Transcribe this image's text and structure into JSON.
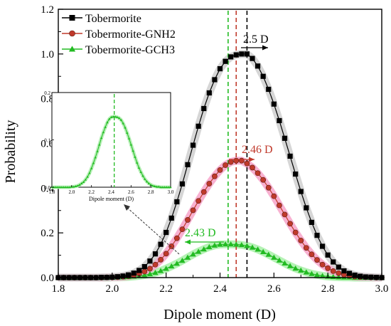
{
  "chart_data": {
    "type": "scatter",
    "xlabel": "Dipole moment (D)",
    "ylabel": "Probability",
    "xlim": [
      1.8,
      3.0
    ],
    "ylim": [
      0,
      1.2
    ],
    "xticks": [
      "1.8",
      "2.0",
      "2.2",
      "2.4",
      "2.6",
      "2.8",
      "3.0"
    ],
    "yticks": [
      "0.0",
      "0.2",
      "0.4",
      "0.6",
      "0.8",
      "1.0",
      "1.2"
    ],
    "grid": false,
    "legend_position": "top-left",
    "x": [
      1.8,
      1.82,
      1.84,
      1.86,
      1.88,
      1.9,
      1.92,
      1.94,
      1.96,
      1.98,
      2.0,
      2.02,
      2.04,
      2.06,
      2.08,
      2.1,
      2.12,
      2.14,
      2.16,
      2.18,
      2.2,
      2.22,
      2.24,
      2.26,
      2.28,
      2.3,
      2.32,
      2.34,
      2.36,
      2.38,
      2.4,
      2.42,
      2.44,
      2.46,
      2.48,
      2.5,
      2.52,
      2.54,
      2.56,
      2.58,
      2.6,
      2.62,
      2.64,
      2.66,
      2.68,
      2.7,
      2.72,
      2.74,
      2.76,
      2.78,
      2.8,
      2.82,
      2.84,
      2.86,
      2.88,
      2.9,
      2.92,
      2.94,
      2.96,
      2.98,
      3.0
    ],
    "series": [
      {
        "name": "Tobermorite",
        "color": "#000000",
        "marker": "square",
        "mean_label": "2.5 D",
        "mean_x": 2.5,
        "values": [
          0.0,
          0.0,
          0.0,
          0.0,
          0.0,
          0.0,
          0.0,
          0.0,
          0.001,
          0.001,
          0.002,
          0.004,
          0.007,
          0.012,
          0.02,
          0.032,
          0.049,
          0.074,
          0.106,
          0.149,
          0.202,
          0.266,
          0.339,
          0.419,
          0.505,
          0.592,
          0.677,
          0.756,
          0.826,
          0.885,
          0.934,
          0.967,
          0.987,
          0.996,
          1.0,
          1.0,
          0.98,
          0.946,
          0.9,
          0.842,
          0.776,
          0.702,
          0.623,
          0.543,
          0.463,
          0.385,
          0.312,
          0.247,
          0.189,
          0.14,
          0.101,
          0.07,
          0.047,
          0.03,
          0.019,
          0.011,
          0.006,
          0.003,
          0.002,
          0.001,
          0.0
        ]
      },
      {
        "name": "Tobermorite-GNH2",
        "color": "#c0392b",
        "marker": "circle",
        "mean_label": "2.46 D",
        "mean_x": 2.46,
        "values": [
          0.0,
          0.0,
          0.0,
          0.0,
          0.0,
          0.0,
          0.0,
          0.0,
          0.0,
          0.001,
          0.001,
          0.002,
          0.004,
          0.007,
          0.011,
          0.018,
          0.027,
          0.04,
          0.058,
          0.08,
          0.107,
          0.14,
          0.176,
          0.216,
          0.258,
          0.301,
          0.343,
          0.383,
          0.42,
          0.453,
          0.481,
          0.503,
          0.517,
          0.523,
          0.523,
          0.51,
          0.492,
          0.467,
          0.437,
          0.402,
          0.364,
          0.323,
          0.282,
          0.241,
          0.202,
          0.166,
          0.133,
          0.104,
          0.079,
          0.058,
          0.042,
          0.029,
          0.02,
          0.013,
          0.008,
          0.005,
          0.003,
          0.002,
          0.001,
          0.0,
          0.0
        ]
      },
      {
        "name": "Tobermorite-GCH3",
        "color": "#22bb22",
        "marker": "triangle",
        "mean_label": "2.43 D",
        "mean_x": 2.43,
        "values": [
          0.0,
          0.0,
          0.0,
          0.0,
          0.0,
          0.0,
          0.0,
          0.0,
          0.0,
          0.0,
          0.001,
          0.001,
          0.002,
          0.003,
          0.005,
          0.008,
          0.011,
          0.016,
          0.022,
          0.03,
          0.04,
          0.051,
          0.063,
          0.076,
          0.09,
          0.104,
          0.116,
          0.127,
          0.137,
          0.144,
          0.148,
          0.149,
          0.149,
          0.148,
          0.146,
          0.142,
          0.135,
          0.126,
          0.115,
          0.103,
          0.09,
          0.077,
          0.064,
          0.052,
          0.041,
          0.032,
          0.024,
          0.017,
          0.012,
          0.008,
          0.005,
          0.003,
          0.002,
          0.001,
          0.001,
          0.0,
          0.0,
          0.0,
          0.0,
          0.0,
          0.0
        ]
      }
    ],
    "inset": {
      "xlabel": "Dipole moment (D)",
      "xlim": [
        1.8,
        3.0
      ],
      "ylim": [
        0,
        0.2
      ],
      "xticks": [
        "1.8",
        "2.0",
        "2.2",
        "2.4",
        "2.6",
        "2.8",
        "3.0"
      ],
      "yticks": [
        "0.0",
        "0.1",
        "0.2"
      ],
      "series_name": "Tobermorite-GCH3",
      "mean_x": 2.43
    }
  }
}
